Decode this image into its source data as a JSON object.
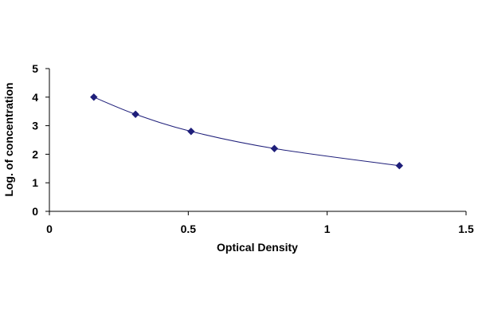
{
  "chart_data": {
    "type": "scatter",
    "title": "",
    "xlabel": "Optical Density",
    "ylabel": "Log. of concentration",
    "xlim": [
      0,
      1.5
    ],
    "ylim": [
      0,
      5
    ],
    "x_ticks": [
      "0",
      "0.5",
      "1",
      "1.5"
    ],
    "y_ticks": [
      "0",
      "1",
      "2",
      "3",
      "4",
      "5"
    ],
    "grid": false,
    "legend": "none",
    "series": [
      {
        "x": [
          0.16,
          0.31,
          0.51,
          0.81,
          1.26
        ],
        "y": [
          4.0,
          3.4,
          2.8,
          2.2,
          1.6
        ],
        "fit": "smooth curve",
        "color": "#1F1F7A"
      }
    ]
  }
}
